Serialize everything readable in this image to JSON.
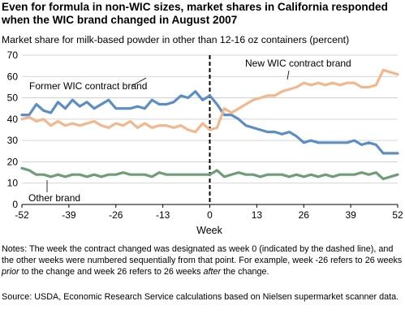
{
  "title": "Even for formula in non-WIC sizes, market shares in California responded when the WIC brand changed in August 2007",
  "subtitle": "Market share for milk-based powder in other than 12-16 oz containers (percent)",
  "notes": {
    "p1": "Notes: The week the contract changed was designated as week 0 (indicated by the dashed line), and the other weeks were numbered sequentially from that point. For example, week -26 refers to 26 weeks ",
    "prior": "prior",
    "p2": " to the change and week 26 refers to 26 weeks ",
    "after": "after",
    "p3": " the change."
  },
  "source": "Source: USDA, Economic Research Service calculations based on Nielsen supermarket scanner data.",
  "colors": {
    "former": "#5b8ec6",
    "new": "#f2b78c",
    "other": "#6f9d78",
    "grid": "#c8c8c8",
    "axis": "#000000"
  },
  "chart_data": {
    "type": "line",
    "xlabel": "Week",
    "ylabel": "",
    "xlim": [
      -52,
      52
    ],
    "ylim": [
      0,
      70
    ],
    "xticks": [
      -52,
      -39,
      -26,
      -13,
      0,
      13,
      26,
      39,
      52
    ],
    "yticks": [
      0,
      10,
      20,
      30,
      40,
      50,
      60,
      70
    ],
    "grid": true,
    "event_line": {
      "x": 0,
      "style": "dashed"
    },
    "series": [
      {
        "name": "Former WIC contract brand",
        "key": "former",
        "x": [
          -52,
          -50,
          -48,
          -46,
          -44,
          -42,
          -40,
          -38,
          -36,
          -34,
          -32,
          -30,
          -28,
          -26,
          -24,
          -22,
          -20,
          -18,
          -16,
          -14,
          -12,
          -10,
          -8,
          -6,
          -4,
          -2,
          0,
          2,
          4,
          6,
          8,
          10,
          12,
          14,
          16,
          18,
          20,
          22,
          24,
          26,
          28,
          30,
          32,
          34,
          36,
          38,
          40,
          42,
          44,
          46,
          48,
          50,
          52
        ],
        "y": [
          42,
          42,
          47,
          44,
          43,
          48,
          45,
          49,
          46,
          48,
          45,
          47,
          49,
          45,
          45,
          45,
          46,
          45,
          49,
          47,
          47,
          48,
          51,
          50,
          53,
          49,
          51,
          47,
          42,
          42,
          40,
          37,
          36,
          35,
          34,
          34,
          33,
          34,
          32,
          29,
          30,
          29,
          29,
          29,
          29,
          29,
          30,
          28,
          29,
          28,
          24,
          24,
          24
        ]
      },
      {
        "name": "New WIC contract brand",
        "key": "new",
        "x": [
          -52,
          -50,
          -48,
          -46,
          -44,
          -42,
          -40,
          -38,
          -36,
          -34,
          -32,
          -30,
          -28,
          -26,
          -24,
          -22,
          -20,
          -18,
          -16,
          -14,
          -12,
          -10,
          -8,
          -6,
          -4,
          -2,
          0,
          2,
          4,
          6,
          8,
          10,
          12,
          14,
          16,
          18,
          20,
          22,
          24,
          26,
          28,
          30,
          32,
          34,
          36,
          38,
          40,
          42,
          44,
          46,
          48,
          50,
          52
        ],
        "y": [
          40,
          41,
          39,
          40,
          37,
          39,
          37,
          38,
          37,
          38,
          39,
          37,
          36,
          38,
          37,
          39,
          36,
          38,
          36,
          37,
          37,
          36,
          37,
          35,
          34,
          38,
          35,
          36,
          45,
          43,
          45,
          47,
          49,
          50,
          51,
          51,
          53,
          54,
          55,
          57,
          56,
          57,
          56,
          57,
          56,
          57,
          57,
          55,
          55,
          56,
          63,
          62,
          61
        ]
      },
      {
        "name": "Other brand",
        "key": "other",
        "x": [
          -52,
          -50,
          -48,
          -46,
          -44,
          -42,
          -40,
          -38,
          -36,
          -34,
          -32,
          -30,
          -28,
          -26,
          -24,
          -22,
          -20,
          -18,
          -16,
          -14,
          -12,
          -10,
          -8,
          -6,
          -4,
          -2,
          0,
          2,
          4,
          6,
          8,
          10,
          12,
          14,
          16,
          18,
          20,
          22,
          24,
          26,
          28,
          30,
          32,
          34,
          36,
          38,
          40,
          42,
          44,
          46,
          48,
          50,
          52
        ],
        "y": [
          17,
          16,
          14,
          14,
          13,
          14,
          13,
          14,
          14,
          13,
          14,
          13,
          14,
          14,
          15,
          14,
          14,
          14,
          13,
          15,
          14,
          14,
          14,
          14,
          14,
          14,
          14,
          16,
          13,
          14,
          15,
          14,
          14,
          13,
          14,
          14,
          14,
          13,
          14,
          13,
          14,
          13,
          14,
          13,
          14,
          14,
          14,
          15,
          14,
          15,
          12,
          13,
          14
        ]
      }
    ],
    "annotations": [
      {
        "text": "Former WIC contract brand",
        "series": "former"
      },
      {
        "text": "New WIC contract brand",
        "series": "new"
      },
      {
        "text": "Other brand",
        "series": "other"
      }
    ]
  }
}
